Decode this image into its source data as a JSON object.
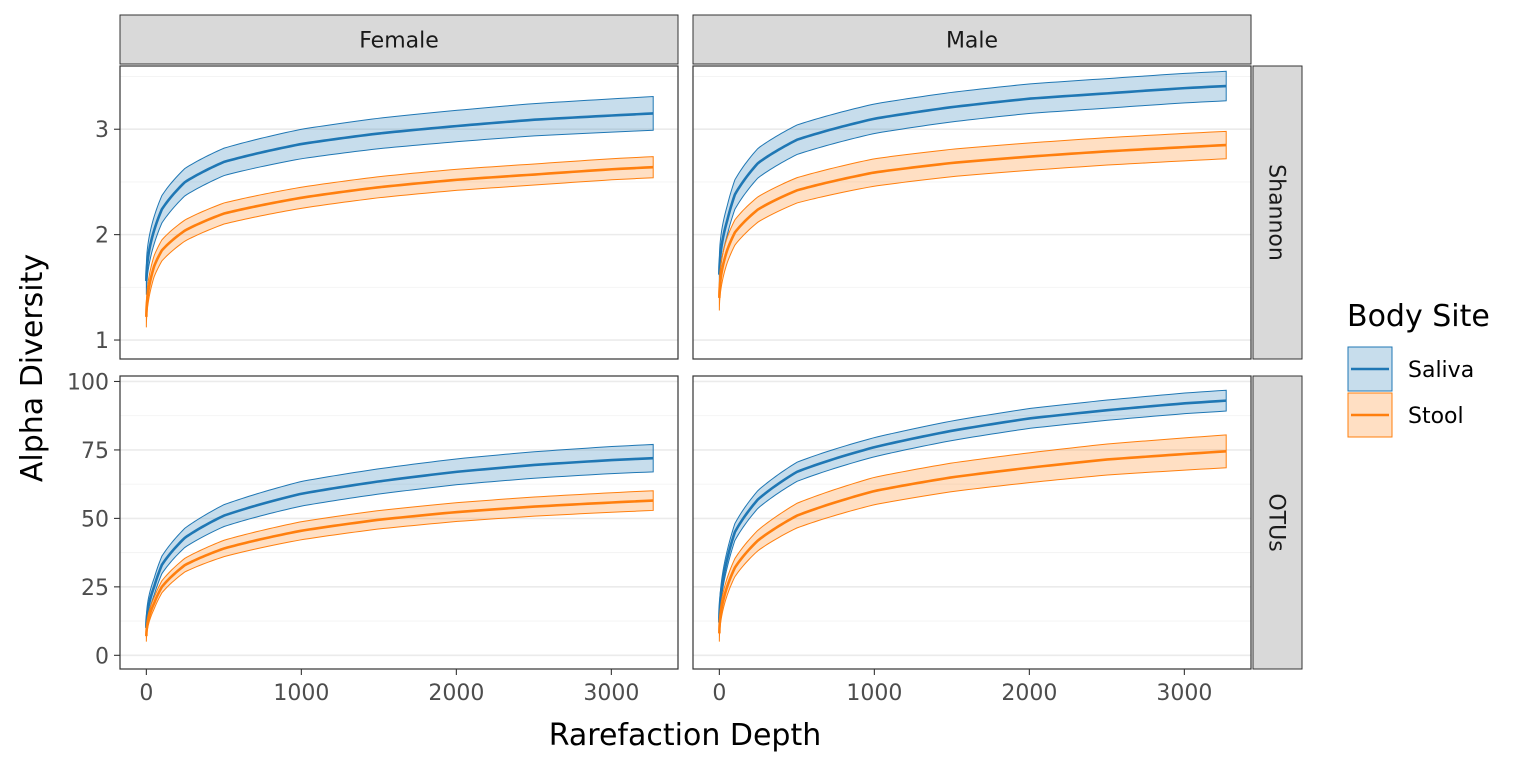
{
  "chart_data": {
    "type": "line",
    "xlabel": "Rarefaction Depth",
    "ylabel": "Alpha Diversity",
    "legend": {
      "title": "Body Site",
      "position": "right"
    },
    "colors": {
      "Saliva": "#1f77b4",
      "Stool": "#ff7f0e"
    },
    "columns": [
      "Female",
      "Male"
    ],
    "rows": [
      "Shannon",
      "OTUs"
    ],
    "x_range": [
      -170,
      3430
    ],
    "x_ticks": [
      0,
      1000,
      2000,
      3000
    ],
    "grid": true,
    "panel_rows": [
      {
        "name": "Shannon",
        "ylim": [
          0.82,
          3.6
        ],
        "yticks": [
          1,
          2,
          3
        ]
      },
      {
        "name": "OTUs",
        "ylim": [
          -5,
          102
        ],
        "yticks": [
          0,
          25,
          50,
          75,
          100
        ]
      }
    ],
    "panels": [
      {
        "column": "Female",
        "row": "Shannon",
        "series": [
          {
            "name": "Saliva",
            "points": [
              [
                0,
                1.56
              ],
              [
                50,
                2.04
              ],
              [
                100,
                2.24
              ],
              [
                250,
                2.5
              ],
              [
                500,
                2.69
              ],
              [
                1000,
                2.86
              ],
              [
                1500,
                2.96
              ],
              [
                2000,
                3.03
              ],
              [
                2500,
                3.09
              ],
              [
                3000,
                3.13
              ],
              [
                3270,
                3.15
              ]
            ],
            "band": [
              [
                0,
                0.13
              ],
              [
                500,
                0.13
              ],
              [
                1000,
                0.14
              ],
              [
                3270,
                0.16
              ]
            ]
          },
          {
            "name": "Stool",
            "points": [
              [
                0,
                1.22
              ],
              [
                50,
                1.7
              ],
              [
                100,
                1.85
              ],
              [
                250,
                2.04
              ],
              [
                500,
                2.2
              ],
              [
                1000,
                2.35
              ],
              [
                1500,
                2.45
              ],
              [
                2000,
                2.52
              ],
              [
                2500,
                2.57
              ],
              [
                3000,
                2.62
              ],
              [
                3270,
                2.64
              ]
            ],
            "band": [
              [
                0,
                0.1
              ],
              [
                500,
                0.1
              ],
              [
                1000,
                0.1
              ],
              [
                3270,
                0.1
              ]
            ]
          }
        ]
      },
      {
        "column": "Male",
        "row": "Shannon",
        "series": [
          {
            "name": "Saliva",
            "points": [
              [
                0,
                1.62
              ],
              [
                50,
                2.13
              ],
              [
                100,
                2.38
              ],
              [
                250,
                2.68
              ],
              [
                500,
                2.9
              ],
              [
                1000,
                3.1
              ],
              [
                1500,
                3.21
              ],
              [
                2000,
                3.29
              ],
              [
                2500,
                3.34
              ],
              [
                3000,
                3.39
              ],
              [
                3270,
                3.41
              ]
            ],
            "band": [
              [
                0,
                0.14
              ],
              [
                500,
                0.14
              ],
              [
                1000,
                0.14
              ],
              [
                3270,
                0.14
              ]
            ]
          },
          {
            "name": "Stool",
            "points": [
              [
                0,
                1.4
              ],
              [
                50,
                1.85
              ],
              [
                100,
                2.02
              ],
              [
                250,
                2.24
              ],
              [
                500,
                2.42
              ],
              [
                1000,
                2.59
              ],
              [
                1500,
                2.68
              ],
              [
                2000,
                2.74
              ],
              [
                2500,
                2.79
              ],
              [
                3000,
                2.83
              ],
              [
                3270,
                2.85
              ]
            ],
            "band": [
              [
                0,
                0.12
              ],
              [
                500,
                0.12
              ],
              [
                1000,
                0.13
              ],
              [
                3270,
                0.13
              ]
            ]
          }
        ]
      },
      {
        "column": "Female",
        "row": "OTUs",
        "series": [
          {
            "name": "Saliva",
            "points": [
              [
                0,
                10
              ],
              [
                50,
                25
              ],
              [
                100,
                33
              ],
              [
                250,
                43
              ],
              [
                500,
                51
              ],
              [
                1000,
                59
              ],
              [
                1500,
                63.5
              ],
              [
                2000,
                67
              ],
              [
                2500,
                69.5
              ],
              [
                3000,
                71.3
              ],
              [
                3270,
                72
              ]
            ],
            "band": [
              [
                0,
                3
              ],
              [
                500,
                4
              ],
              [
                1000,
                4.5
              ],
              [
                3270,
                5
              ]
            ]
          },
          {
            "name": "Stool",
            "points": [
              [
                0,
                7
              ],
              [
                50,
                19
              ],
              [
                100,
                25
              ],
              [
                250,
                33
              ],
              [
                500,
                39
              ],
              [
                1000,
                45.5
              ],
              [
                1500,
                49.5
              ],
              [
                2000,
                52.3
              ],
              [
                2500,
                54.3
              ],
              [
                3000,
                55.8
              ],
              [
                3270,
                56.5
              ]
            ],
            "band": [
              [
                0,
                2
              ],
              [
                500,
                3
              ],
              [
                1000,
                3.3
              ],
              [
                3270,
                3.6
              ]
            ]
          }
        ]
      },
      {
        "column": "Male",
        "row": "OTUs",
        "series": [
          {
            "name": "Saliva",
            "points": [
              [
                0,
                12
              ],
              [
                50,
                35
              ],
              [
                100,
                45
              ],
              [
                250,
                57
              ],
              [
                500,
                67
              ],
              [
                1000,
                76
              ],
              [
                1500,
                82
              ],
              [
                2000,
                86.5
              ],
              [
                2500,
                89.5
              ],
              [
                3000,
                92
              ],
              [
                3270,
                93
              ]
            ],
            "band": [
              [
                0,
                3
              ],
              [
                500,
                3.5
              ],
              [
                1000,
                3.5
              ],
              [
                3270,
                3.8
              ]
            ]
          },
          {
            "name": "Stool",
            "points": [
              [
                0,
                8
              ],
              [
                50,
                25
              ],
              [
                100,
                32
              ],
              [
                250,
                42
              ],
              [
                500,
                51
              ],
              [
                1000,
                60
              ],
              [
                1500,
                65
              ],
              [
                2000,
                68.5
              ],
              [
                2500,
                71.5
              ],
              [
                3000,
                73.5
              ],
              [
                3270,
                74.5
              ]
            ],
            "band": [
              [
                0,
                3
              ],
              [
                500,
                4.5
              ],
              [
                1000,
                5
              ],
              [
                3270,
                6
              ]
            ]
          }
        ]
      }
    ]
  }
}
